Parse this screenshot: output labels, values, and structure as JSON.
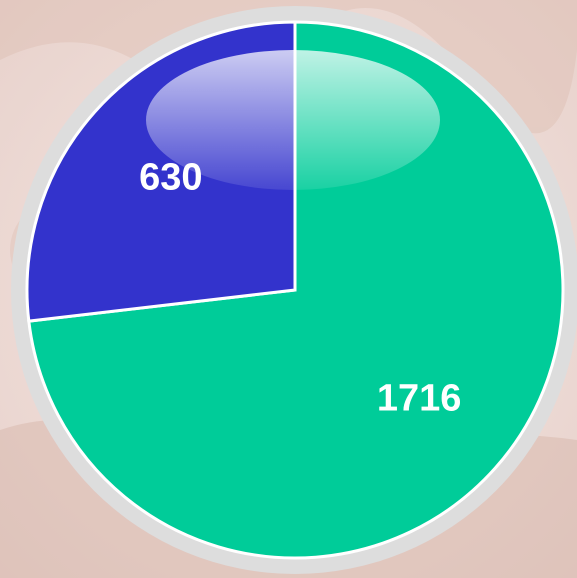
{
  "chart_data": {
    "type": "pie",
    "values": [
      1716,
      630
    ],
    "colors": [
      "#00cc99",
      "#3333cc"
    ],
    "start_angle": 0,
    "direction": "clockwise"
  }
}
